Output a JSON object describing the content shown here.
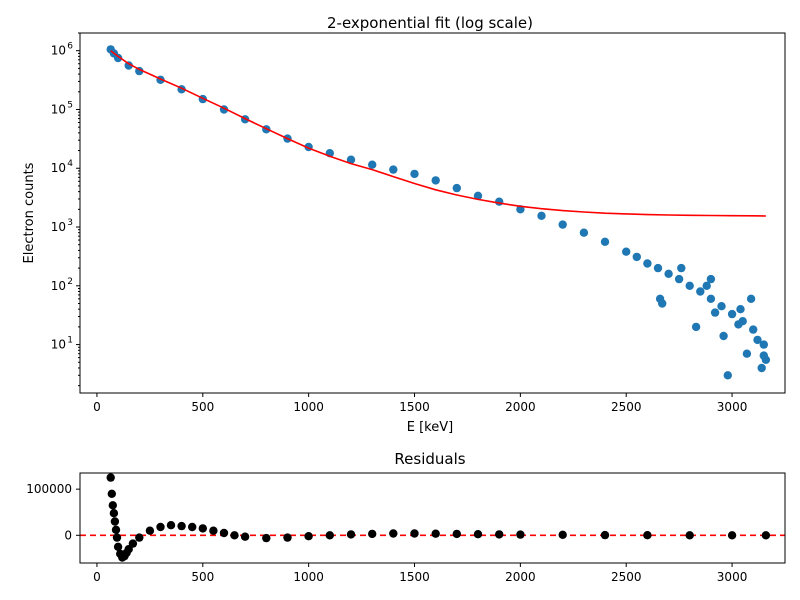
{
  "chart_data": [
    {
      "type": "scatter",
      "title": "2-exponential fit (log scale)",
      "xlabel": "E [keV]",
      "ylabel": "Electron counts",
      "yscale": "log",
      "xlim": [
        -80,
        3250
      ],
      "ylim": [
        1.5,
        2000000
      ],
      "x_ticks": [
        0,
        500,
        1000,
        1500,
        2000,
        2500,
        3000
      ],
      "x_tick_labels": [
        "0",
        "500",
        "1000",
        "1500",
        "2000",
        "2500",
        "3000"
      ],
      "y_ticks": [
        10,
        100,
        1000,
        10000,
        100000,
        1000000
      ],
      "y_tick_labels": [
        {
          "base": "10",
          "exp": "1"
        },
        {
          "base": "10",
          "exp": "2"
        },
        {
          "base": "10",
          "exp": "3"
        },
        {
          "base": "10",
          "exp": "4"
        },
        {
          "base": "10",
          "exp": "5"
        },
        {
          "base": "10",
          "exp": "6"
        }
      ],
      "grid": false,
      "series": [
        {
          "kind": "scatter",
          "color": "#1f77b4",
          "x": [
            65,
            80,
            100,
            150,
            200,
            300,
            400,
            500,
            600,
            700,
            800,
            900,
            1000,
            1100,
            1200,
            1300,
            1400,
            1500,
            1600,
            1700,
            1800,
            1900,
            2000,
            2100,
            2200,
            2300,
            2400,
            2500,
            2550,
            2600,
            2650,
            2700,
            2750,
            2800,
            2850,
            2900,
            2950,
            3000,
            3050,
            3100,
            3150
          ],
          "y": [
            1050000,
            900000,
            750000,
            560000,
            450000,
            320000,
            220000,
            150000,
            100000,
            68000,
            46000,
            32000,
            23000,
            18000,
            14000,
            11500,
            9500,
            8000,
            6200,
            4600,
            3400,
            2700,
            2000,
            1550,
            1100,
            800,
            560,
            380,
            310,
            240,
            200,
            160,
            130,
            100,
            80,
            60,
            45,
            33,
            25,
            18,
            10
          ]
        },
        {
          "kind": "scatter",
          "color": "#1f77b4",
          "x": [
            2660,
            2670,
            2760,
            2830,
            2900,
            2920,
            2960,
            2980,
            3030,
            3070,
            3090,
            3120,
            3140,
            3160,
            3150,
            3040,
            2880
          ],
          "y": [
            60,
            50,
            200,
            20,
            130,
            35,
            14,
            3,
            22,
            7,
            60,
            12,
            4,
            5.5,
            6.5,
            40,
            100
          ]
        },
        {
          "kind": "line",
          "color": "#ff0000",
          "x": [
            65,
            100,
            150,
            200,
            300,
            400,
            500,
            600,
            700,
            800,
            900,
            1000,
            1100,
            1200,
            1300,
            1400,
            1500,
            1600,
            1700,
            1800,
            1900,
            2000,
            2100,
            2200,
            2300,
            2400,
            2500,
            2600,
            2700,
            2800,
            2900,
            3000,
            3100,
            3160
          ],
          "y": [
            1000000,
            800000,
            600000,
            480000,
            330000,
            230000,
            155000,
            105000,
            70000,
            47000,
            32000,
            22000,
            16000,
            12000,
            9500,
            7200,
            5500,
            4300,
            3500,
            2950,
            2550,
            2250,
            2050,
            1900,
            1800,
            1720,
            1670,
            1630,
            1600,
            1580,
            1570,
            1560,
            1550,
            1540
          ]
        }
      ]
    },
    {
      "type": "scatter",
      "title": "Residuals",
      "xlim": [
        -80,
        3250
      ],
      "ylim": [
        -60000,
        135000
      ],
      "x_ticks": [
        0,
        500,
        1000,
        1500,
        2000,
        2500,
        3000
      ],
      "x_tick_labels": [
        "0",
        "500",
        "1000",
        "1500",
        "2000",
        "2500",
        "3000"
      ],
      "y_ticks": [
        0,
        100000
      ],
      "y_tick_labels": [
        "0",
        "100000"
      ],
      "grid": false,
      "zero_line_color": "#ff0000",
      "series": [
        {
          "kind": "scatter",
          "color": "#000000",
          "x": [
            65,
            70,
            75,
            80,
            85,
            90,
            95,
            100,
            110,
            120,
            130,
            140,
            150,
            170,
            200,
            250,
            300,
            350,
            400,
            450,
            500,
            550,
            600,
            650,
            700,
            800,
            900,
            1000,
            1100,
            1200,
            1300,
            1400,
            1500,
            1600,
            1700,
            1800,
            1900,
            2000,
            2200,
            2400,
            2600,
            2800,
            3000,
            3160
          ],
          "y": [
            125000,
            90000,
            65000,
            48000,
            30000,
            12000,
            -5000,
            -25000,
            -40000,
            -48000,
            -45000,
            -38000,
            -30000,
            -18000,
            -5000,
            10000,
            18000,
            22000,
            20000,
            18000,
            15000,
            10000,
            5000,
            0,
            -3000,
            -6000,
            -5000,
            -2000,
            0,
            2000,
            3000,
            4000,
            4000,
            3500,
            3000,
            2500,
            2000,
            1500,
            1000,
            500,
            200,
            100,
            50,
            10
          ]
        }
      ]
    }
  ]
}
